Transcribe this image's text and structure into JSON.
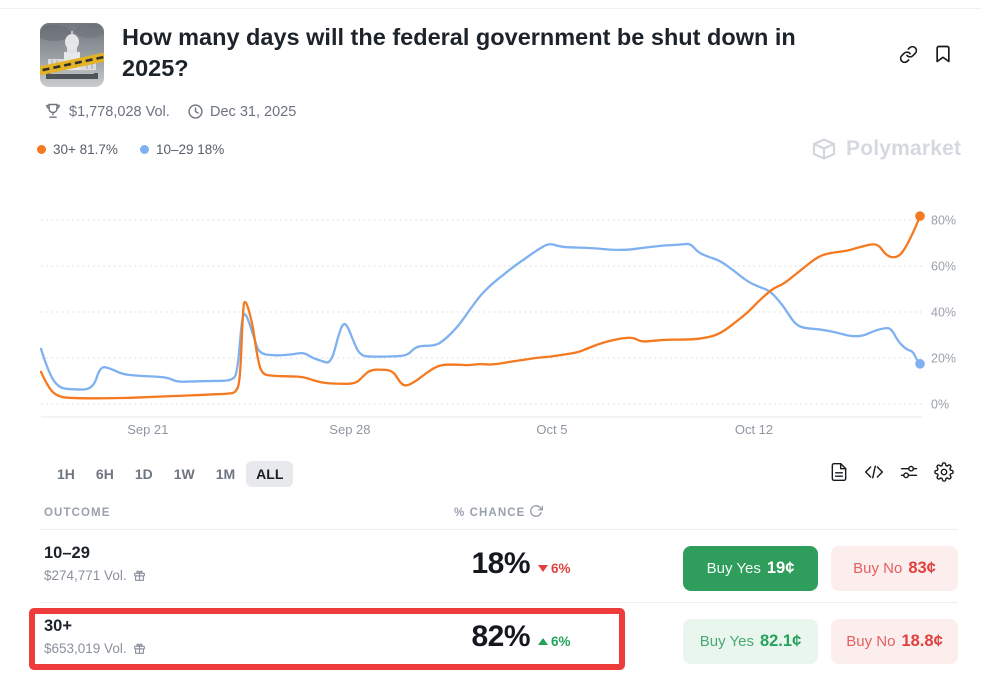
{
  "header": {
    "title": "How many days will the federal government be shut down in 2025?",
    "volume": "$1,778,028 Vol.",
    "end_date": "Dec 31, 2025",
    "icons": [
      "capitol-thumbnail",
      "trophy-icon",
      "clock-icon",
      "link-icon",
      "bookmark-icon"
    ]
  },
  "legend": {
    "items": [
      {
        "label": "30+ 81.7%",
        "color": "#f5791f"
      },
      {
        "label": "10–29 18%",
        "color": "#7fb1f0"
      }
    ]
  },
  "watermark": {
    "brand": "Polymarket",
    "icon": "polymarket-logo"
  },
  "chart_data": {
    "type": "line",
    "title": "Outcome probability over time",
    "x_unit": "days (0 = Sep 17, 2025)",
    "x_ticks": [
      {
        "pos": 4,
        "label": "Sep 21"
      },
      {
        "pos": 11,
        "label": "Sep 28"
      },
      {
        "pos": 18,
        "label": "Oct 5"
      },
      {
        "pos": 25,
        "label": "Oct 12"
      }
    ],
    "y_ticks": [
      0,
      20,
      40,
      60,
      80
    ],
    "y_tick_suffix": "%",
    "ylim": [
      0,
      93
    ],
    "grid": "dotted-horizontal",
    "legend_position": "top-left-above-chart",
    "series": [
      {
        "id": "30plus",
        "name": "30+",
        "current": "81.7%",
        "color": "#f5791f",
        "points": [
          [
            0.3,
            14
          ],
          [
            0.55,
            7
          ],
          [
            0.9,
            3
          ],
          [
            1.5,
            2.5
          ],
          [
            3.0,
            2.5
          ],
          [
            4.0,
            3
          ],
          [
            5.0,
            3.5
          ],
          [
            6.0,
            4
          ],
          [
            6.8,
            4.5
          ],
          [
            7.05,
            5
          ],
          [
            7.2,
            10
          ],
          [
            7.3,
            43
          ],
          [
            7.38,
            45
          ],
          [
            7.5,
            41
          ],
          [
            7.65,
            33
          ],
          [
            7.8,
            20
          ],
          [
            7.95,
            13
          ],
          [
            8.3,
            12.2
          ],
          [
            9.0,
            12
          ],
          [
            9.4,
            11.8
          ],
          [
            9.8,
            10
          ],
          [
            10.2,
            9
          ],
          [
            10.6,
            8.8
          ],
          [
            11.2,
            8.8
          ],
          [
            11.45,
            12
          ],
          [
            11.7,
            14.8
          ],
          [
            12.1,
            15
          ],
          [
            12.5,
            14.5
          ],
          [
            12.75,
            9
          ],
          [
            12.95,
            7.7
          ],
          [
            13.3,
            10
          ],
          [
            13.7,
            14
          ],
          [
            14.1,
            17
          ],
          [
            14.6,
            17.2
          ],
          [
            15.1,
            16.8
          ],
          [
            15.5,
            17.5
          ],
          [
            15.9,
            17
          ],
          [
            16.4,
            18
          ],
          [
            16.9,
            19
          ],
          [
            17.4,
            20
          ],
          [
            17.9,
            20.5
          ],
          [
            18.4,
            21.5
          ],
          [
            18.9,
            22.4
          ],
          [
            19.2,
            24
          ],
          [
            19.6,
            26
          ],
          [
            20.0,
            27.5
          ],
          [
            20.4,
            28.5
          ],
          [
            20.8,
            29
          ],
          [
            21.1,
            27
          ],
          [
            21.5,
            27.5
          ],
          [
            22.0,
            28
          ],
          [
            22.6,
            28
          ],
          [
            23.1,
            28.3
          ],
          [
            23.6,
            29.5
          ],
          [
            24.0,
            32
          ],
          [
            24.4,
            36
          ],
          [
            24.8,
            40
          ],
          [
            25.1,
            44
          ],
          [
            25.45,
            48
          ],
          [
            25.7,
            50.5
          ],
          [
            26.0,
            52
          ],
          [
            26.4,
            56
          ],
          [
            26.8,
            60
          ],
          [
            27.1,
            63
          ],
          [
            27.4,
            65
          ],
          [
            27.8,
            66
          ],
          [
            28.2,
            66.5
          ],
          [
            28.6,
            68
          ],
          [
            29.0,
            69.3
          ],
          [
            29.3,
            69.5
          ],
          [
            29.55,
            65
          ],
          [
            29.8,
            63.5
          ],
          [
            30.05,
            64.5
          ],
          [
            30.25,
            68
          ],
          [
            30.45,
            73
          ],
          [
            30.6,
            77
          ],
          [
            30.75,
            81.7
          ]
        ]
      },
      {
        "id": "10to29",
        "name": "10–29",
        "current": "18%",
        "color": "#7fb1f0",
        "points": [
          [
            0.3,
            24
          ],
          [
            0.55,
            14
          ],
          [
            0.9,
            7
          ],
          [
            1.4,
            6.3
          ],
          [
            2.1,
            6.3
          ],
          [
            2.35,
            16.5
          ],
          [
            2.7,
            15.5
          ],
          [
            3.1,
            13
          ],
          [
            3.6,
            12.3
          ],
          [
            4.2,
            12
          ],
          [
            4.7,
            11.5
          ],
          [
            5.0,
            9.6
          ],
          [
            5.5,
            9.8
          ],
          [
            6.3,
            10
          ],
          [
            6.9,
            10.2
          ],
          [
            7.1,
            13
          ],
          [
            7.25,
            36
          ],
          [
            7.35,
            40
          ],
          [
            7.5,
            36
          ],
          [
            7.7,
            28
          ],
          [
            7.85,
            22
          ],
          [
            8.4,
            21
          ],
          [
            9.0,
            21.5
          ],
          [
            9.4,
            22.5
          ],
          [
            9.7,
            20
          ],
          [
            10.0,
            18.8
          ],
          [
            10.35,
            17.4
          ],
          [
            10.65,
            32
          ],
          [
            10.8,
            35.5
          ],
          [
            10.95,
            33
          ],
          [
            11.1,
            28
          ],
          [
            11.35,
            21
          ],
          [
            11.8,
            20.5
          ],
          [
            12.5,
            20.7
          ],
          [
            13.0,
            21
          ],
          [
            13.3,
            25.3
          ],
          [
            13.9,
            25.3
          ],
          [
            14.2,
            27
          ],
          [
            14.7,
            33
          ],
          [
            15.1,
            40
          ],
          [
            15.5,
            47
          ],
          [
            15.9,
            52
          ],
          [
            16.3,
            56
          ],
          [
            16.7,
            60
          ],
          [
            17.1,
            63.5
          ],
          [
            17.5,
            67
          ],
          [
            17.9,
            70
          ],
          [
            18.3,
            68.3
          ],
          [
            18.9,
            68
          ],
          [
            19.5,
            67.7
          ],
          [
            20.1,
            67
          ],
          [
            20.6,
            67
          ],
          [
            21.2,
            68
          ],
          [
            21.9,
            69
          ],
          [
            22.5,
            69.3
          ],
          [
            22.8,
            69.8
          ],
          [
            23.05,
            66
          ],
          [
            23.4,
            64
          ],
          [
            23.8,
            62.5
          ],
          [
            24.3,
            58
          ],
          [
            24.8,
            53
          ],
          [
            25.2,
            50.8
          ],
          [
            25.5,
            49.5
          ],
          [
            25.75,
            46.5
          ],
          [
            26.05,
            42
          ],
          [
            26.4,
            35
          ],
          [
            26.7,
            33
          ],
          [
            27.3,
            32.5
          ],
          [
            27.9,
            31
          ],
          [
            28.3,
            29.5
          ],
          [
            28.75,
            29.5
          ],
          [
            29.1,
            31.5
          ],
          [
            29.5,
            33
          ],
          [
            29.75,
            33
          ],
          [
            30.0,
            27
          ],
          [
            30.3,
            23.5
          ],
          [
            30.5,
            23
          ],
          [
            30.65,
            19
          ],
          [
            30.75,
            17.5
          ]
        ]
      }
    ]
  },
  "toolbar": {
    "options": [
      "1H",
      "6H",
      "1D",
      "1W",
      "1M",
      "ALL"
    ],
    "active": "ALL",
    "tool_icons": [
      "document-icon",
      "embed-code-icon",
      "filters-icon",
      "gear-icon"
    ]
  },
  "table": {
    "outcome_header": "OUTCOME",
    "chance_header": "% CHANCE",
    "icons": [
      "refresh-icon",
      "gift-icon"
    ],
    "rows": [
      {
        "name": "10–29",
        "volume": "$274,771 Vol.",
        "chance": "18%",
        "change": "6%",
        "change_dir": "down",
        "yes_label": "Buy Yes",
        "yes_price": "19¢",
        "no_label": "Buy No",
        "no_price": "83¢"
      },
      {
        "name": "30+",
        "volume": "$653,019 Vol.",
        "chance": "82%",
        "change": "6%",
        "change_dir": "up",
        "yes_label": "Buy Yes",
        "yes_price": "82.1¢",
        "no_label": "Buy No",
        "no_price": "18.8¢",
        "highlighted": "true"
      }
    ]
  },
  "annotation": {
    "highlighted_row": "30+",
    "highlight_color": "#ee3b3b"
  },
  "colors": {
    "buy_yes_solid": "#2f9e5c",
    "buy_yes_light_bg": "#e9f6ee",
    "buy_yes_text": "#27a15d",
    "buy_no_bg": "#fdeeee",
    "buy_no_text": "#e04040",
    "series_30plus": "#f5791f",
    "series_10to29": "#7fb1f0",
    "muted_text": "#6b7280",
    "axis_text": "#9aa1ab",
    "watermark": "#d5d9df"
  }
}
